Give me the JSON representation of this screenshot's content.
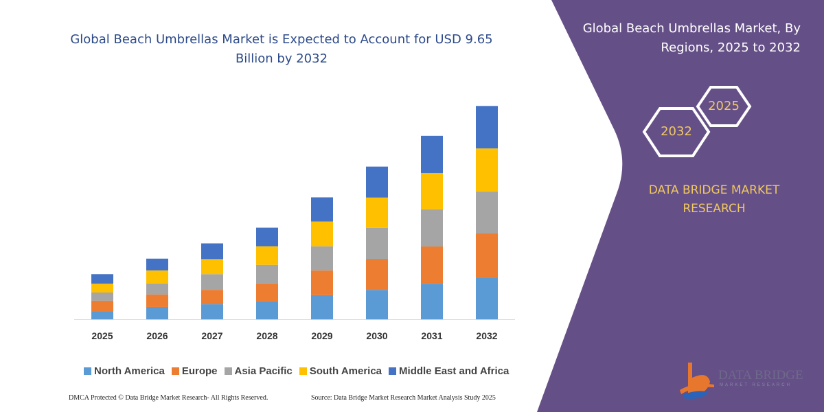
{
  "header": {
    "title": "Global Beach Umbrellas Market is Expected to Account for USD 9.65 Billion by 2032"
  },
  "side_panel": {
    "title": "Global Beach Umbrellas Market, By Regions, 2025 to 2032",
    "hex_2025": "2025",
    "hex_2032": "2032",
    "brand": "DATA BRIDGE MARKET RESEARCH",
    "logo_text": "DATA BRIDGE",
    "logo_sub": "MARKET RESEARCH",
    "background_color": "#654f87",
    "accent_color": "#f0c860"
  },
  "footer": {
    "left": "DMCA Protected © Data Bridge Market Research-  All Rights Reserved.",
    "right": "Source: Data Bridge Market Research  Market Analysis Study 2025"
  },
  "chart_data": {
    "type": "bar",
    "stacked": true,
    "title": "Global Beach Umbrellas Market is Expected to Account for USD 9.65 Billion by 2032",
    "xlabel": "",
    "ylabel": "",
    "grid": false,
    "legend_position": "bottom",
    "categories": [
      "2025",
      "2026",
      "2027",
      "2028",
      "2029",
      "2030",
      "2031",
      "2032"
    ],
    "ylim": [
      0,
      10
    ],
    "series": [
      {
        "name": "North America",
        "color": "#5b9bd5",
        "values": [
          0.37,
          0.56,
          0.68,
          0.81,
          1.09,
          1.33,
          1.61,
          1.89
        ]
      },
      {
        "name": "Europe",
        "color": "#ed7d31",
        "values": [
          0.47,
          0.56,
          0.65,
          0.81,
          1.12,
          1.4,
          1.68,
          1.99
        ]
      },
      {
        "name": "Asia Pacific",
        "color": "#a5a5a5",
        "values": [
          0.37,
          0.5,
          0.71,
          0.84,
          1.09,
          1.4,
          1.68,
          1.89
        ]
      },
      {
        "name": "South America",
        "color": "#ffc000",
        "values": [
          0.4,
          0.59,
          0.68,
          0.84,
          1.12,
          1.37,
          1.64,
          1.95
        ]
      },
      {
        "name": "Middle East and Africa",
        "color": "#4472c4",
        "values": [
          0.43,
          0.53,
          0.71,
          0.84,
          1.09,
          1.4,
          1.68,
          1.92
        ]
      }
    ]
  }
}
